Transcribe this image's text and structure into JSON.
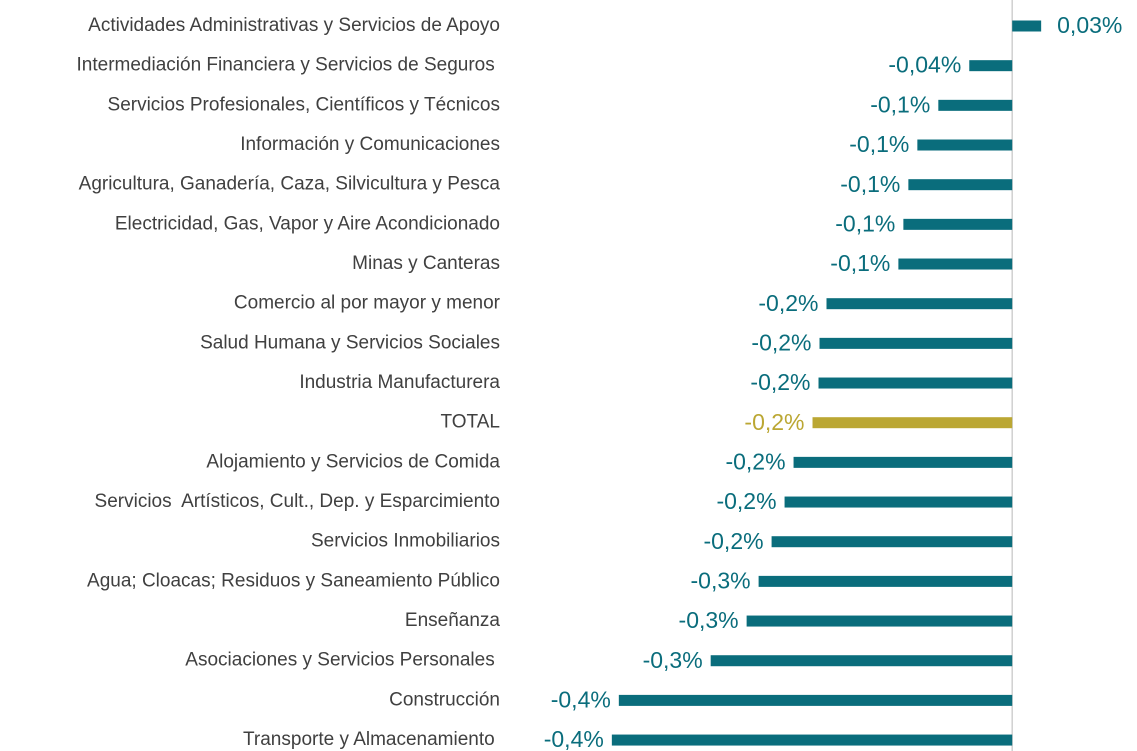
{
  "chart_data": {
    "type": "barh",
    "categories": [
      "Actividades Administrativas y Servicios de Apoyo",
      "Intermediación Financiera y Servicios de Seguros ",
      "Servicios Profesionales, Científicos y Técnicos",
      "Información y Comunicaciones",
      "Agricultura, Ganadería, Caza, Silvicultura y Pesca",
      "Electricidad, Gas, Vapor y Aire Acondicionado",
      "Minas y Canteras",
      "Comercio al por mayor y menor",
      "Salud Humana y Servicios Sociales",
      "Industria Manufacturera",
      "TOTAL",
      "Alojamiento y Servicios de Comida",
      "Servicios  Artísticos, Cult., Dep. y Esparcimiento",
      "Servicios Inmobiliarios",
      "Agua; Cloacas; Residuos y Saneamiento Público",
      "Enseñanza",
      "Asociaciones y Servicios Personales ",
      "Construcción",
      "Transporte y Almacenamiento "
    ],
    "values": [
      0.029,
      -0.043,
      -0.074,
      -0.095,
      -0.104,
      -0.109,
      -0.114,
      -0.186,
      -0.193,
      -0.194,
      -0.2,
      -0.219,
      -0.228,
      -0.241,
      -0.254,
      -0.266,
      -0.302,
      -0.394,
      -0.401
    ],
    "value_labels": [
      "0,03%",
      "-0,04%",
      "-0,1%",
      "-0,1%",
      "-0,1%",
      "-0,1%",
      "-0,1%",
      "-0,2%",
      "-0,2%",
      "-0,2%",
      "-0,2%",
      "-0,2%",
      "-0,2%",
      "-0,2%",
      "-0,3%",
      "-0,3%",
      "-0,3%",
      "-0,4%",
      "-0,4%"
    ],
    "colors": [
      "#0a6d7c",
      "#0a6d7c",
      "#0a6d7c",
      "#0a6d7c",
      "#0a6d7c",
      "#0a6d7c",
      "#0a6d7c",
      "#0a6d7c",
      "#0a6d7c",
      "#0a6d7c",
      "#bba733",
      "#0a6d7c",
      "#0a6d7c",
      "#0a6d7c",
      "#0a6d7c",
      "#0a6d7c",
      "#0a6d7c",
      "#0a6d7c",
      "#0a6d7c"
    ],
    "xlim": [
      -0.5,
      0.125
    ]
  }
}
